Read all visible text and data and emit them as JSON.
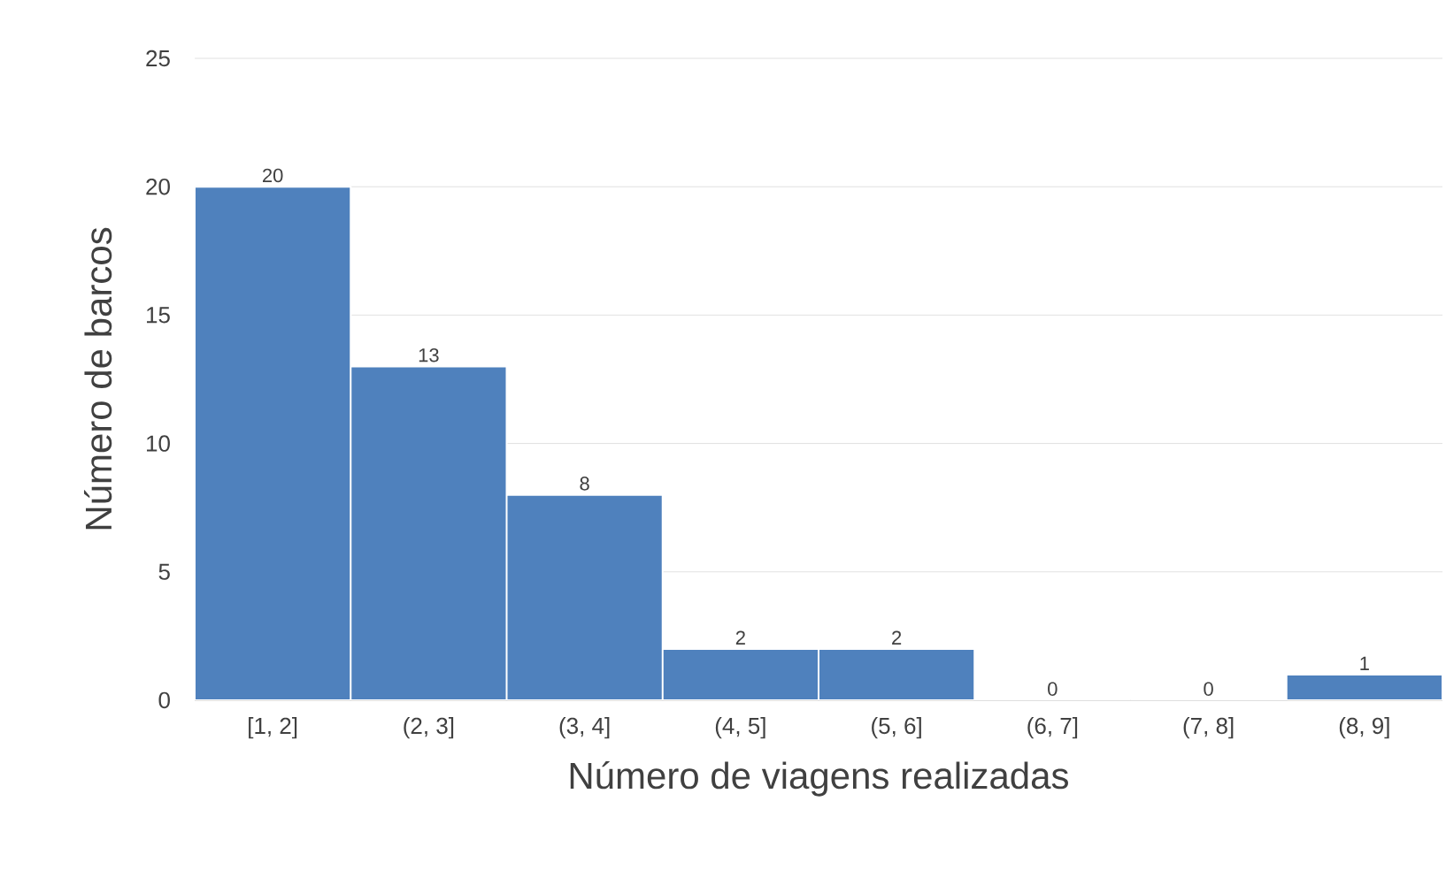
{
  "chart_data": {
    "type": "bar",
    "xlabel": "Número de viagens realizadas",
    "ylabel": "Número de barcos",
    "categories": [
      "[1, 2]",
      "(2, 3]",
      "(3, 4]",
      "(4, 5]",
      "(5, 6]",
      "(6, 7]",
      "(7, 8]",
      "(8, 9]"
    ],
    "values": [
      20,
      13,
      8,
      2,
      2,
      0,
      0,
      1
    ],
    "color": "#4f81bd",
    "ylim": [
      0,
      25
    ],
    "yticks": [
      0,
      5,
      10,
      15,
      20,
      25
    ],
    "grid": "y",
    "data_labels": true
  }
}
